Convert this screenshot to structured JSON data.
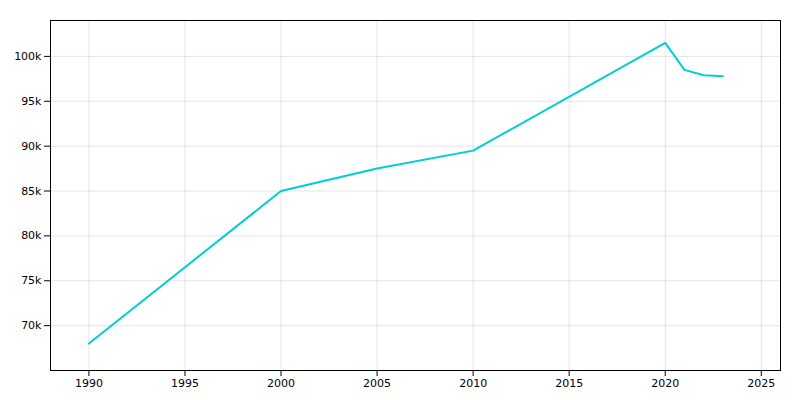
{
  "chart_data": {
    "type": "line",
    "x": [
      1990,
      2000,
      2005,
      2010,
      2020,
      2021,
      2022,
      2023
    ],
    "values": [
      68000,
      85000,
      87500,
      89500,
      101500,
      98500,
      97900,
      97800
    ],
    "color": "#00CED1",
    "xlim": [
      1988,
      2026
    ],
    "ylim": [
      65000,
      104000
    ],
    "xticks": [
      1990,
      1995,
      2000,
      2005,
      2010,
      2015,
      2020,
      2025
    ],
    "yticks": [
      {
        "value": 70000,
        "label": "70k"
      },
      {
        "value": 75000,
        "label": "75k"
      },
      {
        "value": 80000,
        "label": "80k"
      },
      {
        "value": 85000,
        "label": "85k"
      },
      {
        "value": 90000,
        "label": "90k"
      },
      {
        "value": 95000,
        "label": "95k"
      },
      {
        "value": 100000,
        "label": "100k"
      }
    ],
    "grid": true
  }
}
